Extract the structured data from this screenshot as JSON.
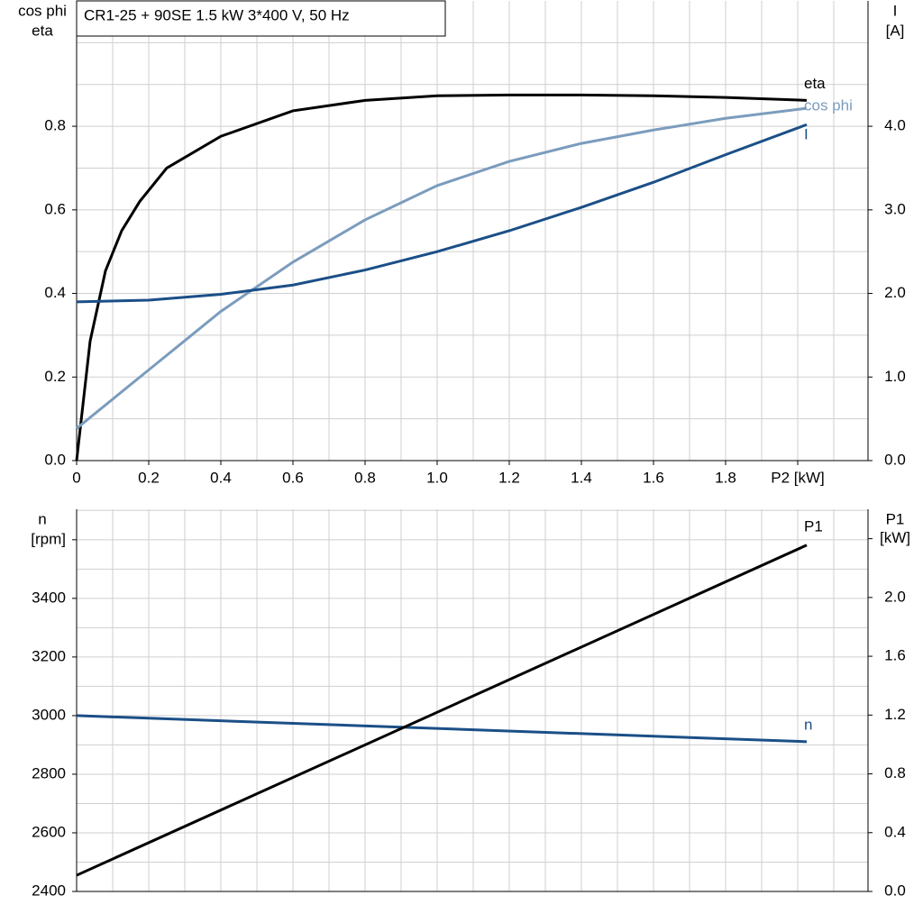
{
  "chart_data": [
    {
      "type": "line",
      "title": "CR1-25 + 90SE   1.5 kW   3*400 V, 50 Hz",
      "ylabel": [
        "cos phi",
        "eta"
      ],
      "y2label": [
        "I",
        "[A]"
      ],
      "xlim": [
        0,
        2.195
      ],
      "xticks": [
        {
          "value": 0,
          "label": "0"
        },
        0.2,
        0.4,
        0.6,
        0.8,
        {
          "value": 1,
          "label": "1.0"
        },
        1.2,
        1.4,
        1.6,
        1.8,
        {
          "value": 2,
          "label": "P2 [kW]"
        }
      ],
      "xgrid": [
        0.1,
        0.3,
        0.5,
        0.7,
        0.9,
        1.1,
        1.3,
        1.5,
        1.7,
        1.9,
        2.1
      ],
      "ylim": [
        0,
        1.1
      ],
      "yticks": [
        {
          "value": 0,
          "label": "0.0"
        },
        0.2,
        0.4,
        0.6,
        0.8
      ],
      "ygrid": [
        0.1,
        0.3,
        0.5,
        0.7,
        0.9,
        1.0
      ],
      "y2lim": [
        0,
        5.5
      ],
      "y2ticks": [
        {
          "value": 0,
          "label": "0.0"
        },
        {
          "value": 1,
          "label": "1.0"
        },
        {
          "value": 2,
          "label": "2.0"
        },
        {
          "value": 3,
          "label": "3.0"
        },
        {
          "value": 4,
          "label": "4.0"
        }
      ],
      "grid": true,
      "series": [
        {
          "name": "eta",
          "color": "#000000",
          "axis": "y",
          "x": [
            0,
            0.0375,
            0.08,
            0.125,
            0.175,
            0.25,
            0.4,
            0.6,
            0.8,
            1.0,
            1.2,
            1.4,
            1.6,
            1.8,
            2.025
          ],
          "values": [
            0,
            0.286,
            0.454,
            0.55,
            0.62,
            0.7,
            0.776,
            0.837,
            0.862,
            0.873,
            0.875,
            0.875,
            0.873,
            0.869,
            0.862
          ]
        },
        {
          "name": "cos phi",
          "color": "#7b9cbd",
          "axis": "y",
          "x": [
            0,
            0.2,
            0.4,
            0.6,
            0.8,
            1.0,
            1.2,
            1.4,
            1.6,
            1.8,
            2.025
          ],
          "values": [
            0.077,
            0.217,
            0.357,
            0.475,
            0.576,
            0.658,
            0.716,
            0.759,
            0.791,
            0.819,
            0.843
          ]
        },
        {
          "name": "I",
          "color": "#1b4f87",
          "axis": "y2",
          "x": [
            0,
            0.2,
            0.4,
            0.6,
            0.8,
            1.0,
            1.2,
            1.4,
            1.6,
            1.8,
            2.025
          ],
          "values": [
            1.9,
            1.92,
            1.99,
            2.1,
            2.28,
            2.5,
            2.75,
            3.03,
            3.33,
            3.66,
            4.02
          ]
        }
      ]
    },
    {
      "type": "line",
      "ylabel": [
        "n"
      ],
      "y2label": [
        "P1"
      ],
      "xlim": [
        0,
        2.195
      ],
      "xgrid": [
        0.1,
        0.2,
        0.3,
        0.4,
        0.5,
        0.6,
        0.7,
        0.8,
        0.9,
        1.0,
        1.1,
        1.2,
        1.3,
        1.4,
        1.5,
        1.6,
        1.7,
        1.8,
        1.9,
        2.0,
        2.1
      ],
      "ylim": [
        2400,
        3704
      ],
      "yticks": [
        2400,
        2600,
        2800,
        3000,
        3200,
        3400,
        {
          "value": 3600,
          "label": "[rpm]"
        }
      ],
      "ygrid": [
        2500,
        2700,
        2900,
        3100,
        3300,
        3500,
        3700
      ],
      "y2lim": [
        0,
        2.6
      ],
      "y2ticks": [
        {
          "value": 0,
          "label": "0.0"
        },
        0.4,
        0.8,
        1.2,
        1.6,
        {
          "value": 2,
          "label": "2.0"
        },
        {
          "value": 2.4,
          "label": "[kW]"
        }
      ],
      "grid": true,
      "series": [
        {
          "name": "n",
          "color": "#1b4f87",
          "axis": "y",
          "x": [
            0,
            2.025
          ],
          "values": [
            3000,
            2911
          ]
        },
        {
          "name": "P1",
          "color": "#000000",
          "axis": "y2",
          "x": [
            0,
            2.025
          ],
          "values": [
            0.11,
            2.356
          ]
        }
      ]
    }
  ]
}
